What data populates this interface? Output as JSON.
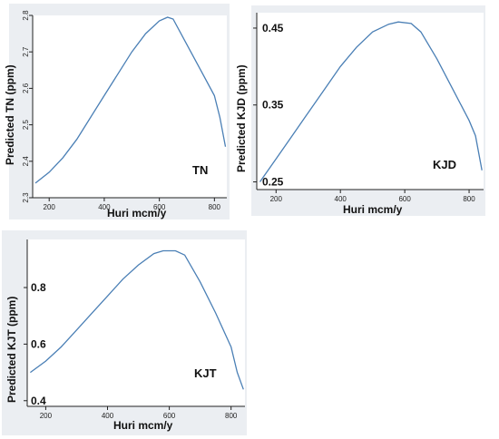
{
  "chart_data": [
    {
      "type": "line",
      "ylabel": "Predicted TN (ppm)",
      "xlabel": "Huri mcm/y",
      "annotation": "TN",
      "xlim": [
        140,
        845
      ],
      "ylim": [
        2.3,
        2.8
      ],
      "xticks": [
        200,
        400,
        600,
        800
      ],
      "yticks": [
        2.3,
        2.4,
        2.5,
        2.6,
        2.7,
        2.8
      ],
      "color": "#4a7fb5",
      "grid": false,
      "x": [
        150,
        200,
        250,
        300,
        350,
        400,
        450,
        500,
        550,
        600,
        630,
        650,
        700,
        750,
        800,
        820,
        840
      ],
      "y": [
        2.34,
        2.37,
        2.41,
        2.46,
        2.52,
        2.58,
        2.64,
        2.7,
        2.75,
        2.785,
        2.795,
        2.79,
        2.72,
        2.65,
        2.58,
        2.52,
        2.44
      ]
    },
    {
      "type": "line",
      "ylabel": "Predicted KJD (ppm)",
      "xlabel": "Huri mcm/y",
      "annotation": "KJD",
      "xlim": [
        140,
        845
      ],
      "ylim": [
        0.24,
        0.47
      ],
      "xticks": [
        200,
        400,
        600,
        800
      ],
      "yticks": [
        0.25,
        0.35,
        0.45
      ],
      "color": "#4a7fb5",
      "grid": false,
      "x": [
        150,
        200,
        250,
        300,
        350,
        400,
        450,
        500,
        550,
        580,
        620,
        650,
        700,
        750,
        800,
        820,
        840
      ],
      "y": [
        0.25,
        0.28,
        0.31,
        0.34,
        0.37,
        0.4,
        0.425,
        0.445,
        0.455,
        0.458,
        0.456,
        0.445,
        0.41,
        0.37,
        0.33,
        0.31,
        0.265
      ]
    },
    {
      "type": "line",
      "ylabel": "Predicted KJT (ppm)",
      "xlabel": "Huri mcm/y",
      "annotation": "KJT",
      "xlim": [
        140,
        845
      ],
      "ylim": [
        0.38,
        0.97
      ],
      "xticks": [
        200,
        400,
        600,
        800
      ],
      "yticks": [
        0.4,
        0.6,
        0.8
      ],
      "color": "#4a7fb5",
      "grid": false,
      "x": [
        150,
        200,
        250,
        300,
        350,
        400,
        450,
        500,
        550,
        580,
        620,
        650,
        700,
        750,
        800,
        820,
        840
      ],
      "y": [
        0.5,
        0.54,
        0.59,
        0.65,
        0.71,
        0.77,
        0.83,
        0.88,
        0.92,
        0.93,
        0.93,
        0.915,
        0.82,
        0.71,
        0.59,
        0.5,
        0.44
      ]
    }
  ]
}
